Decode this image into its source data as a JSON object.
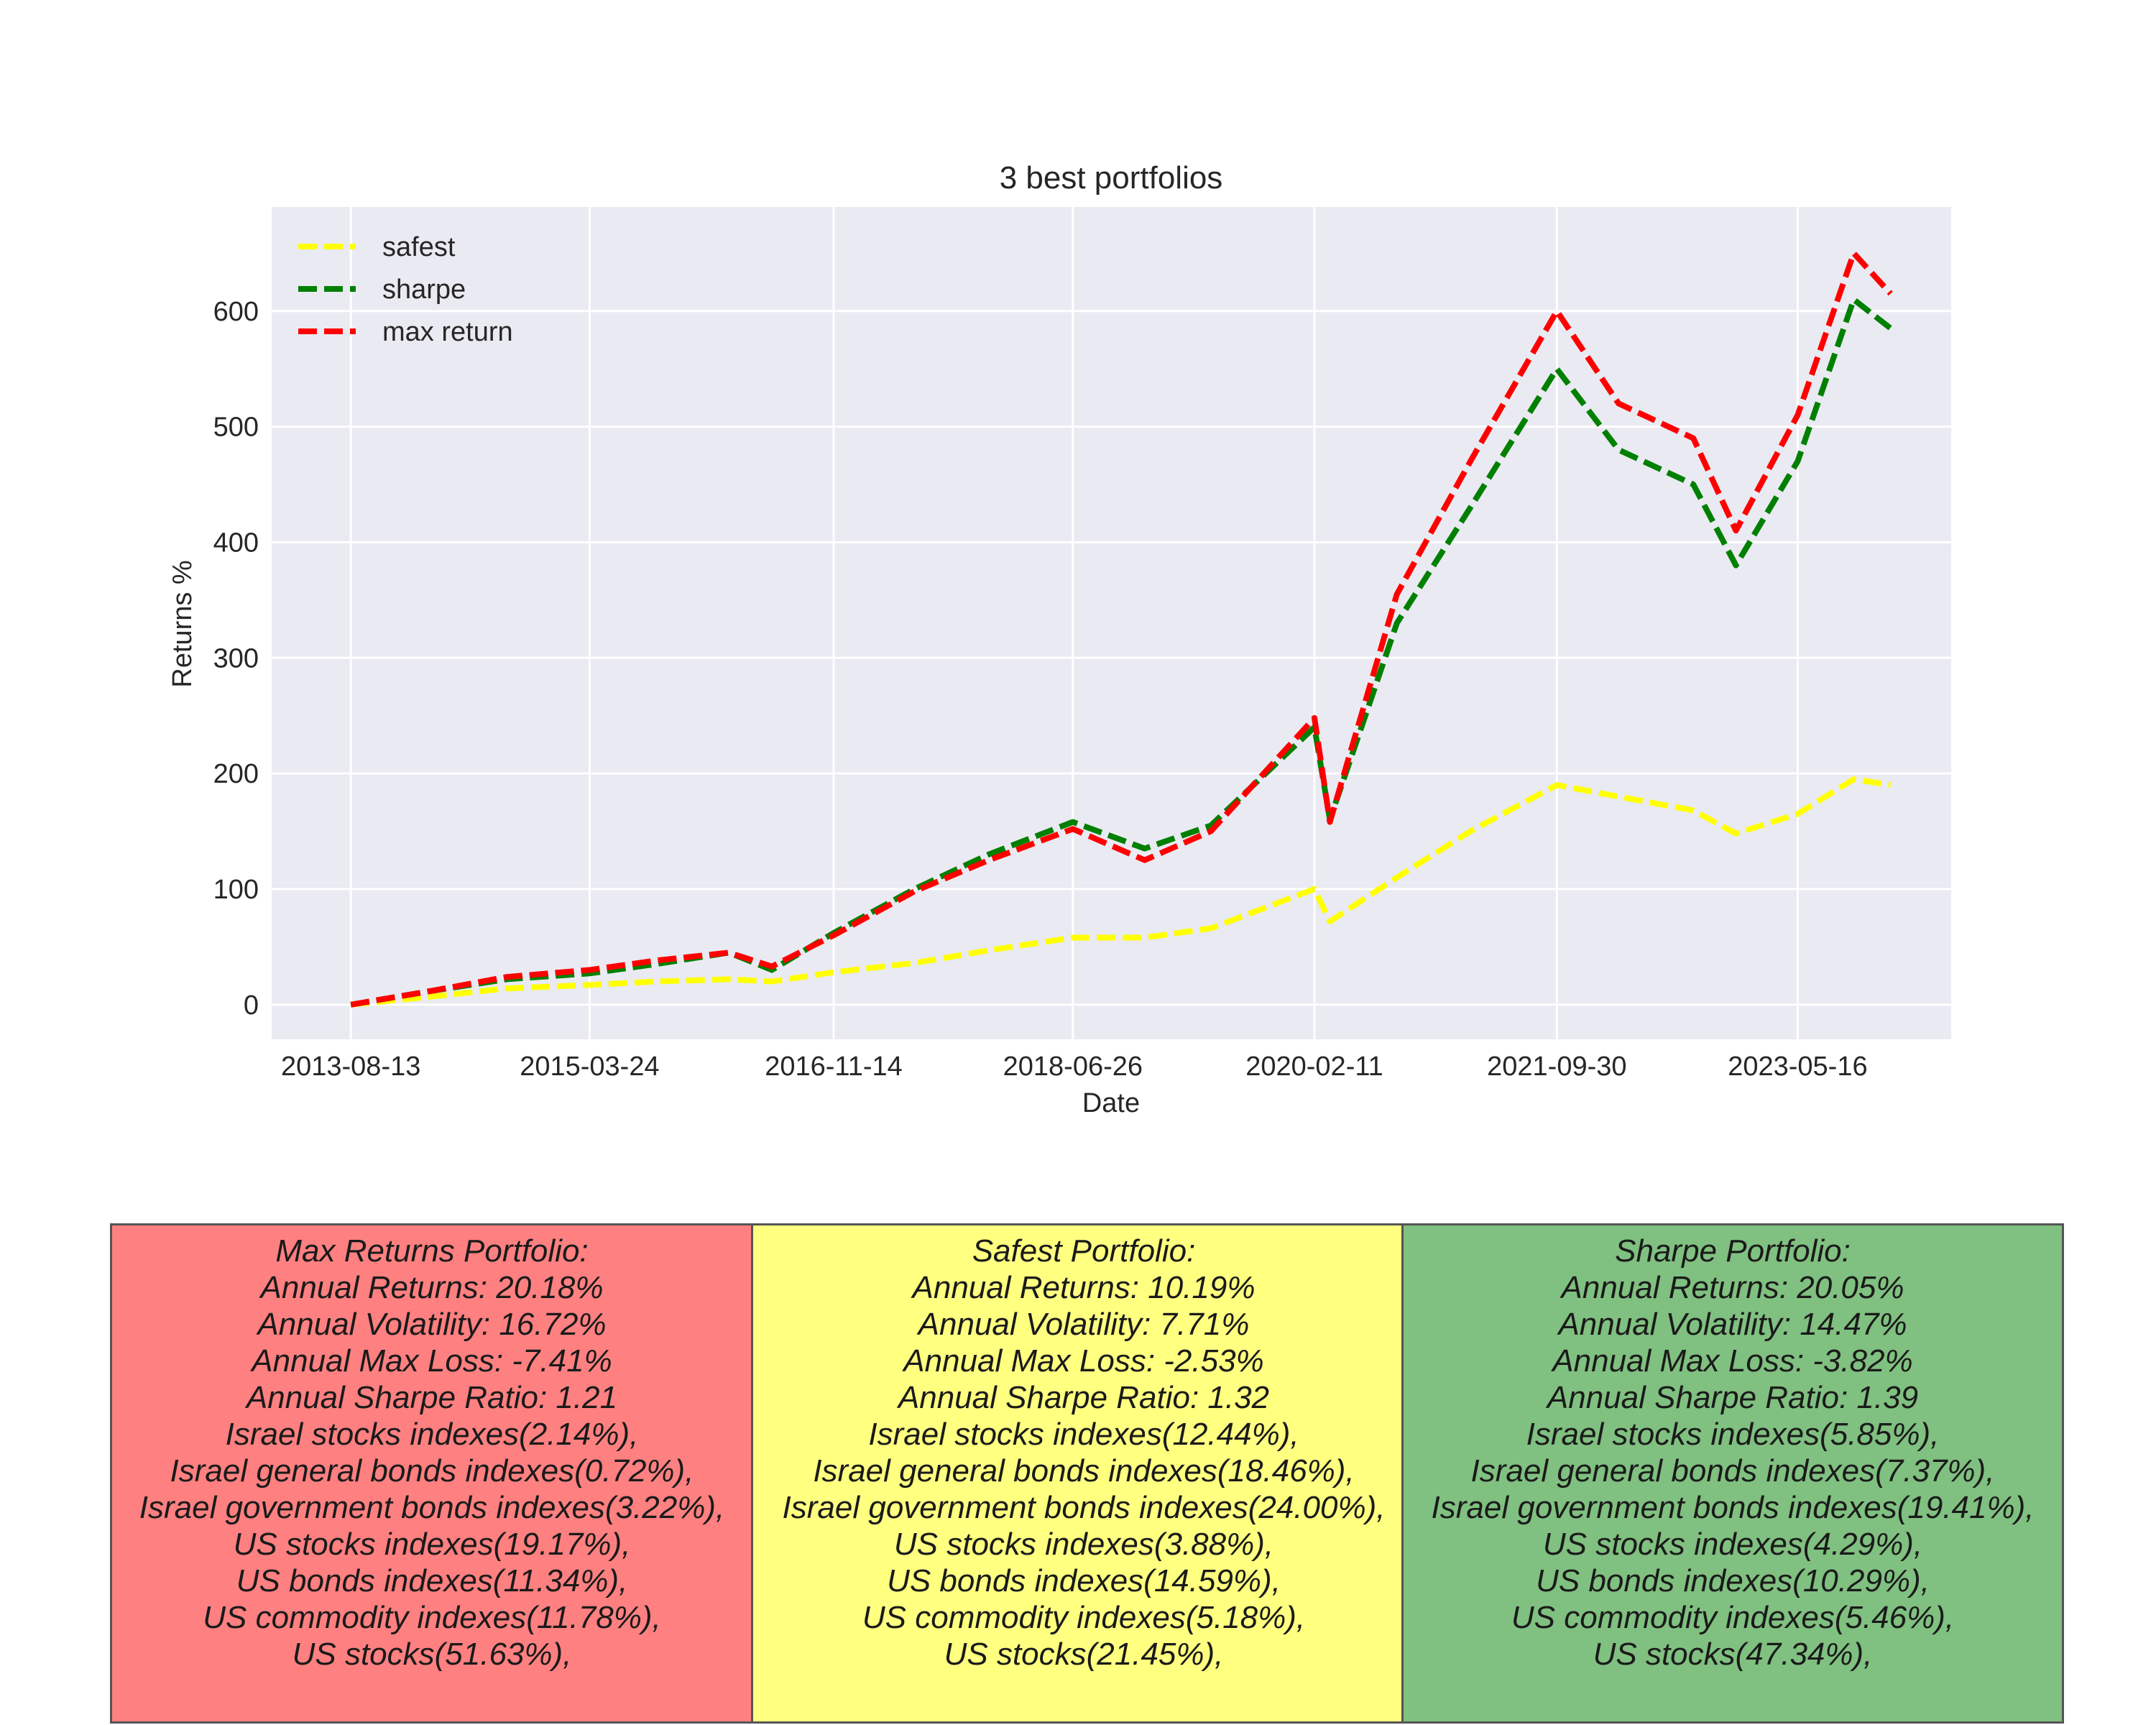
{
  "chart_data": {
    "type": "line",
    "title": "3 best portfolios",
    "xlabel": "Date",
    "ylabel": "Returns %",
    "x_ticks": [
      "2013-08-13",
      "2015-03-24",
      "2016-11-14",
      "2018-06-26",
      "2020-02-11",
      "2021-09-30",
      "2023-05-16"
    ],
    "y_ticks": [
      0,
      100,
      200,
      300,
      400,
      500,
      600
    ],
    "ylim": [
      -30,
      690
    ],
    "xlim": [
      "2013-01-30",
      "2024-05-28"
    ],
    "grid": true,
    "legend_position": "top-left",
    "series": [
      {
        "name": "safest",
        "color": "#ffff00",
        "style": "dashed",
        "points": [
          [
            "2013-08-13",
            0
          ],
          [
            "2014-03-01",
            7
          ],
          [
            "2014-09-01",
            14
          ],
          [
            "2015-03-24",
            17
          ],
          [
            "2015-09-01",
            20
          ],
          [
            "2016-03-01",
            22
          ],
          [
            "2016-06-15",
            20
          ],
          [
            "2016-11-14",
            28
          ],
          [
            "2017-06-01",
            36
          ],
          [
            "2017-12-01",
            47
          ],
          [
            "2018-06-26",
            58
          ],
          [
            "2018-12-20",
            58
          ],
          [
            "2019-06-01",
            66
          ],
          [
            "2020-02-11",
            100
          ],
          [
            "2020-03-20",
            72
          ],
          [
            "2020-09-01",
            110
          ],
          [
            "2021-03-01",
            150
          ],
          [
            "2021-09-30",
            190
          ],
          [
            "2022-03-01",
            180
          ],
          [
            "2022-09-01",
            168
          ],
          [
            "2022-12-15",
            148
          ],
          [
            "2023-05-16",
            165
          ],
          [
            "2023-10-01",
            195
          ],
          [
            "2023-12-31",
            190
          ]
        ]
      },
      {
        "name": "sharpe",
        "color": "#008000",
        "style": "dashed",
        "points": [
          [
            "2013-08-13",
            0
          ],
          [
            "2014-03-01",
            12
          ],
          [
            "2014-09-01",
            22
          ],
          [
            "2015-03-24",
            27
          ],
          [
            "2015-09-01",
            35
          ],
          [
            "2016-03-01",
            45
          ],
          [
            "2016-06-15",
            30
          ],
          [
            "2016-11-14",
            62
          ],
          [
            "2017-06-01",
            100
          ],
          [
            "2017-12-01",
            130
          ],
          [
            "2018-06-26",
            158
          ],
          [
            "2018-12-20",
            135
          ],
          [
            "2019-06-01",
            155
          ],
          [
            "2020-02-11",
            240
          ],
          [
            "2020-03-20",
            160
          ],
          [
            "2020-09-01",
            330
          ],
          [
            "2021-03-01",
            430
          ],
          [
            "2021-09-30",
            550
          ],
          [
            "2022-03-01",
            480
          ],
          [
            "2022-09-01",
            450
          ],
          [
            "2022-12-15",
            380
          ],
          [
            "2023-05-16",
            470
          ],
          [
            "2023-10-01",
            610
          ],
          [
            "2023-12-31",
            585
          ]
        ]
      },
      {
        "name": "max return",
        "color": "#ff0000",
        "style": "dashed",
        "points": [
          [
            "2013-08-13",
            0
          ],
          [
            "2014-03-01",
            12
          ],
          [
            "2014-09-01",
            24
          ],
          [
            "2015-03-24",
            30
          ],
          [
            "2015-09-01",
            38
          ],
          [
            "2016-03-01",
            45
          ],
          [
            "2016-06-15",
            33
          ],
          [
            "2016-11-14",
            60
          ],
          [
            "2017-06-01",
            98
          ],
          [
            "2017-12-01",
            125
          ],
          [
            "2018-06-26",
            152
          ],
          [
            "2018-12-20",
            125
          ],
          [
            "2019-06-01",
            150
          ],
          [
            "2020-02-11",
            248
          ],
          [
            "2020-03-20",
            158
          ],
          [
            "2020-09-01",
            355
          ],
          [
            "2021-03-01",
            470
          ],
          [
            "2021-09-30",
            600
          ],
          [
            "2022-03-01",
            520
          ],
          [
            "2022-09-01",
            490
          ],
          [
            "2022-12-15",
            410
          ],
          [
            "2023-05-16",
            510
          ],
          [
            "2023-10-01",
            650
          ],
          [
            "2023-12-31",
            615
          ]
        ]
      }
    ]
  },
  "boxes": [
    {
      "color": "#ff8080",
      "lines": [
        "Max Returns Portfolio:",
        "Annual Returns: 20.18%",
        "Annual Volatility: 16.72%",
        "Annual Max Loss: -7.41%",
        "Annual Sharpe Ratio: 1.21",
        "Israel stocks indexes(2.14%),",
        "Israel general bonds indexes(0.72%),",
        "Israel government bonds indexes(3.22%),",
        "US stocks indexes(19.17%),",
        "US bonds indexes(11.34%),",
        "US commodity indexes(11.78%),",
        "US stocks(51.63%),"
      ]
    },
    {
      "color": "#ffff80",
      "lines": [
        "Safest Portfolio:",
        "Annual Returns: 10.19%",
        "Annual Volatility: 7.71%",
        "Annual Max Loss: -2.53%",
        "Annual Sharpe Ratio: 1.32",
        "Israel stocks indexes(12.44%),",
        "Israel general bonds indexes(18.46%),",
        "Israel government bonds indexes(24.00%),",
        "US stocks indexes(3.88%),",
        "US bonds indexes(14.59%),",
        "US commodity indexes(5.18%),",
        "US stocks(21.45%),"
      ]
    },
    {
      "color": "#80c080",
      "lines": [
        "Sharpe  Portfolio:",
        "Annual Returns: 20.05%",
        "Annual Volatility: 14.47%",
        "Annual Max Loss: -3.82%",
        "Annual Sharpe Ratio: 1.39",
        "Israel stocks indexes(5.85%),",
        "Israel general bonds indexes(7.37%),",
        "Israel government bonds indexes(19.41%),",
        "US stocks indexes(4.29%),",
        "US bonds indexes(10.29%),",
        "US commodity indexes(5.46%),",
        "US stocks(47.34%),"
      ]
    }
  ]
}
